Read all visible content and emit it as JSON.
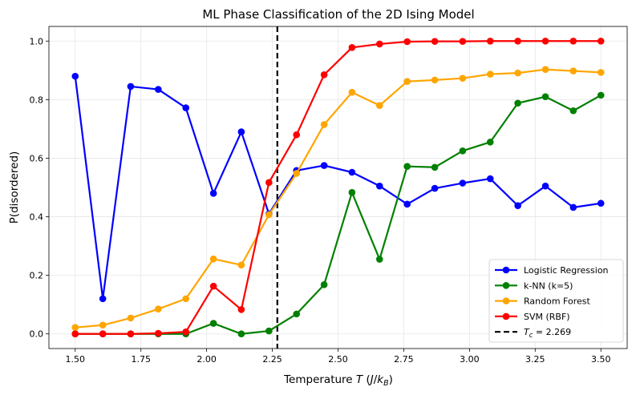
{
  "chart_data": {
    "type": "line",
    "title": "ML Phase Classification of the 2D Ising Model",
    "xlabel_main": "Temperature ",
    "xlabel_var": "T",
    "xlabel_unit_open": " (",
    "xlabel_unit_J": "J",
    "xlabel_unit_slash": "/",
    "xlabel_unit_k": "k",
    "xlabel_unit_sub": "B",
    "xlabel_unit_close": ")",
    "ylabel": "P(disordered)",
    "xlim": [
      1.4,
      3.6
    ],
    "ylim": [
      -0.05,
      1.05
    ],
    "xticks": [
      1.5,
      1.75,
      2.0,
      2.25,
      2.5,
      2.75,
      3.0,
      3.25,
      3.5
    ],
    "xtick_labels": [
      "1.50",
      "1.75",
      "2.00",
      "2.25",
      "2.50",
      "2.75",
      "3.00",
      "3.25",
      "3.50"
    ],
    "yticks": [
      0.0,
      0.2,
      0.4,
      0.6,
      0.8,
      1.0
    ],
    "ytick_labels": [
      "0.0",
      "0.2",
      "0.4",
      "0.6",
      "0.8",
      "1.0"
    ],
    "grid": true,
    "legend_position": "lower-right",
    "x": [
      1.5,
      1.605,
      1.711,
      1.816,
      1.921,
      2.026,
      2.132,
      2.237,
      2.342,
      2.447,
      2.553,
      2.658,
      2.763,
      2.868,
      2.974,
      3.079,
      3.184,
      3.289,
      3.395,
      3.5
    ],
    "series": [
      {
        "name": "Logistic Regression",
        "color": "#0000ff",
        "values": [
          0.88,
          0.12,
          0.845,
          0.835,
          0.772,
          0.48,
          0.69,
          0.41,
          0.558,
          0.575,
          0.552,
          0.505,
          0.443,
          0.497,
          0.515,
          0.53,
          0.438,
          0.505,
          0.432,
          0.446
        ]
      },
      {
        "name": "k-NN (k=5)",
        "color": "#008000",
        "values": [
          0.0,
          0.0,
          0.0,
          0.0,
          0.0,
          0.036,
          0.0,
          0.01,
          0.068,
          0.168,
          0.483,
          0.255,
          0.572,
          0.569,
          0.625,
          0.655,
          0.788,
          0.81,
          0.762,
          0.815
        ]
      },
      {
        "name": "Random Forest",
        "color": "#ffa500",
        "values": [
          0.022,
          0.03,
          0.054,
          0.085,
          0.12,
          0.256,
          0.235,
          0.407,
          0.548,
          0.715,
          0.825,
          0.78,
          0.862,
          0.867,
          0.873,
          0.887,
          0.891,
          0.903,
          0.898,
          0.893
        ]
      },
      {
        "name": "SVM (RBF)",
        "color": "#ff0000",
        "values": [
          0.0,
          0.0,
          0.0,
          0.002,
          0.007,
          0.163,
          0.083,
          0.517,
          0.68,
          0.885,
          0.978,
          0.99,
          0.998,
          0.999,
          0.999,
          1.0,
          1.0,
          1.0,
          1.0,
          1.0
        ]
      }
    ],
    "critical_line": {
      "x": 2.269,
      "label_var": "T",
      "label_sub": "c",
      "label_value": " = 2.269",
      "color": "#000000"
    }
  }
}
